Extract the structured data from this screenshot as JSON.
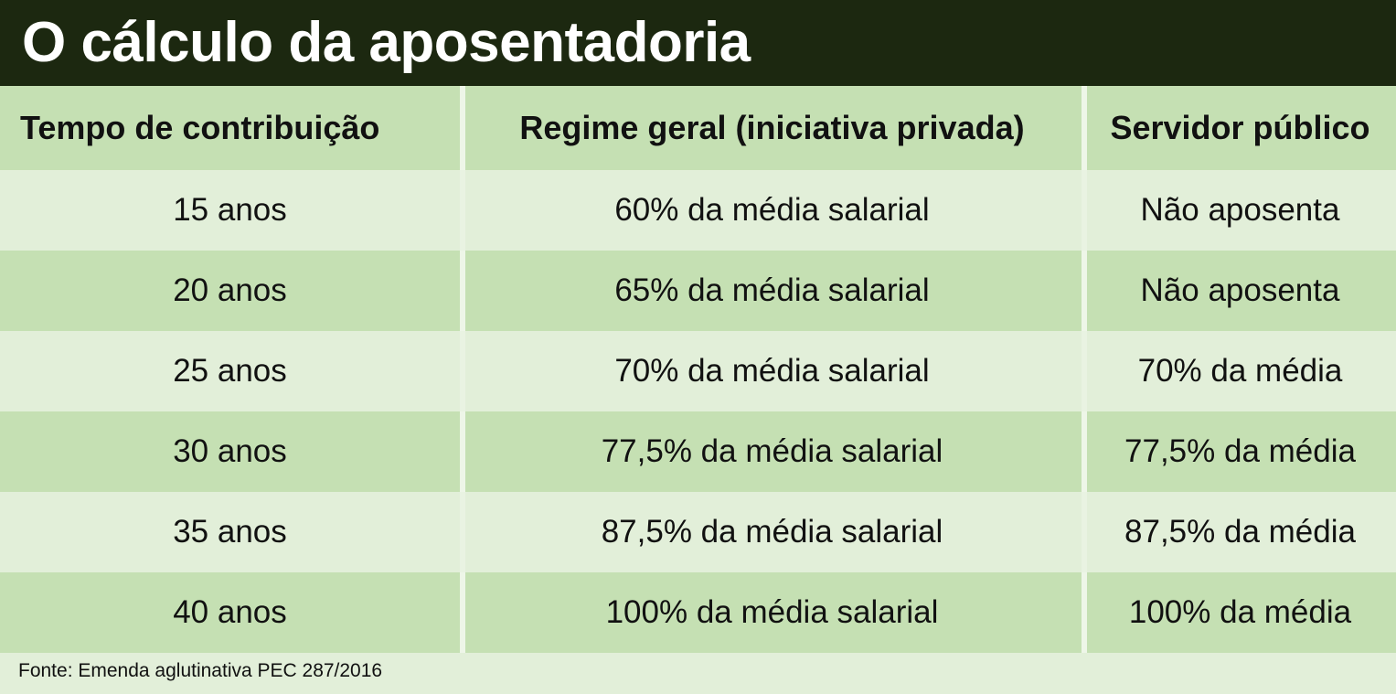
{
  "title": "O cálculo da aposentadoria",
  "chart_data": {
    "type": "table",
    "title": "O cálculo da aposentadoria",
    "columns": [
      "Tempo de contribuição",
      "Regime geral (iniciativa privada)",
      "Servidor público"
    ],
    "rows": [
      [
        "15 anos",
        "60% da média salarial",
        "Não aposenta"
      ],
      [
        "20 anos",
        "65% da média salarial",
        "Não aposenta"
      ],
      [
        "25 anos",
        "70% da média salarial",
        "70% da média"
      ],
      [
        "30 anos",
        "77,5% da média salarial",
        "77,5% da média"
      ],
      [
        "35 anos",
        "87,5% da média salarial",
        "87,5% da média"
      ],
      [
        "40 anos",
        "100% da média salarial",
        "100% da média"
      ]
    ],
    "source": "Fonte: Emenda aglutinativa PEC 287/2016"
  },
  "colors": {
    "title_background": "#1c2810",
    "title_text": "#ffffff",
    "row_light": "#e2efd9",
    "row_dark": "#c5e0b3"
  }
}
